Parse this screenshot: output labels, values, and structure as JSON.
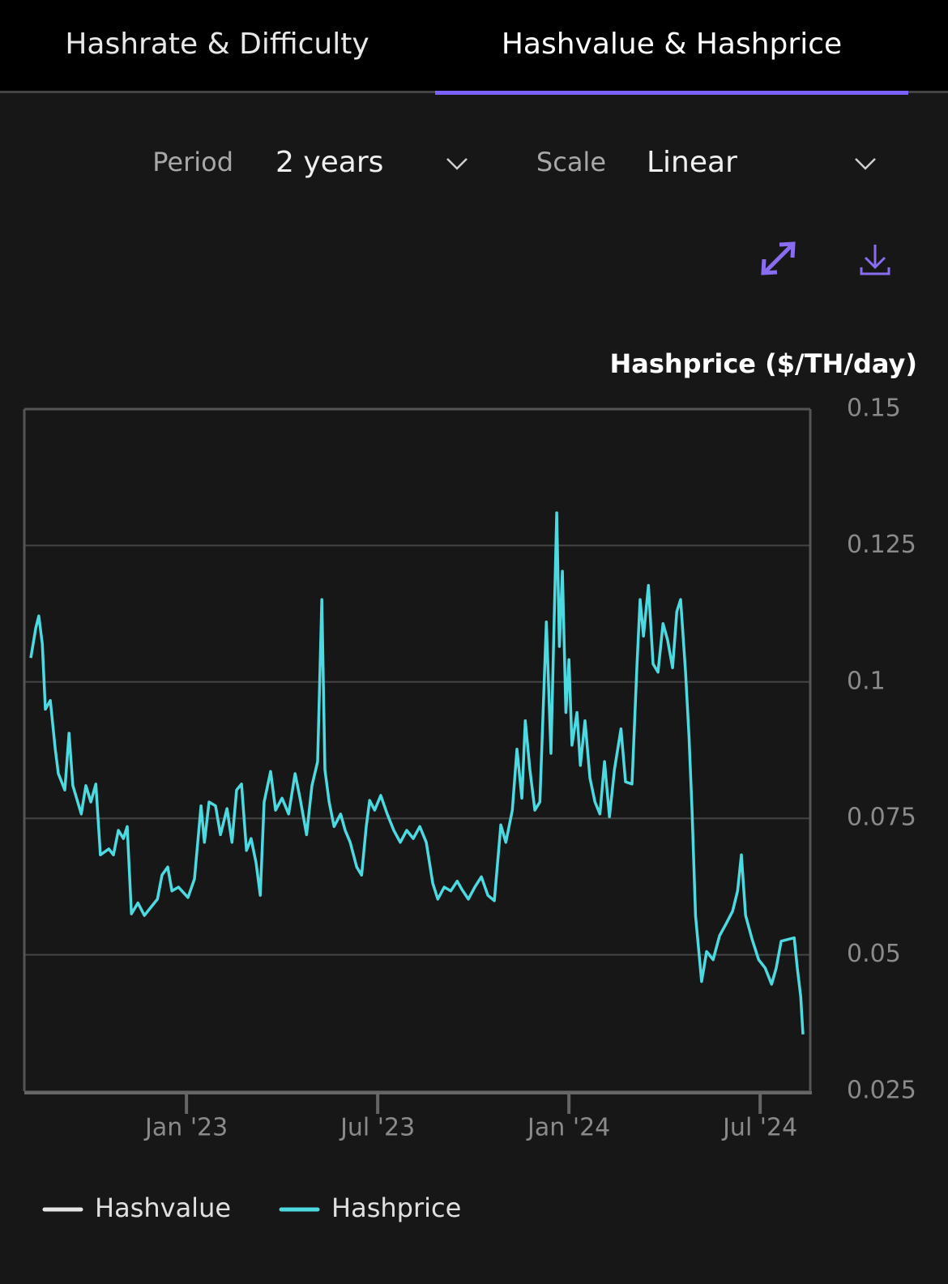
{
  "tabs": [
    "Hashrate & Difficulty",
    "Hashvalue & Hashprice"
  ],
  "active_tab": 1,
  "controls": {
    "period": {
      "label": "Period",
      "value": "2 years"
    },
    "scale": {
      "label": "Scale",
      "value": "Linear"
    }
  },
  "chart_data": {
    "type": "line",
    "y_axis_title": "Hashprice ($/TH/day)",
    "x": [
      2022.593,
      2022.606,
      2022.614,
      2022.623,
      2022.631,
      2022.644,
      2022.657,
      2022.665,
      2022.682,
      2022.693,
      2022.703,
      2022.725,
      2022.737,
      2022.75,
      2022.763,
      2022.775,
      2022.797,
      2022.809,
      2022.822,
      2022.835,
      2022.845,
      2022.856,
      2022.873,
      2022.89,
      2022.907,
      2022.924,
      2022.936,
      2022.951,
      2022.962,
      2022.979,
      2023.004,
      2023.021,
      2023.038,
      2023.047,
      2023.059,
      2023.076,
      2023.089,
      2023.106,
      2023.119,
      2023.131,
      2023.144,
      2023.157,
      2023.169,
      2023.182,
      2023.193,
      2023.203,
      2023.22,
      2023.233,
      2023.25,
      2023.267,
      2023.284,
      2023.297,
      2023.314,
      2023.328,
      2023.343,
      2023.354,
      2023.362,
      2023.373,
      2023.386,
      2023.403,
      2023.415,
      2023.428,
      2023.445,
      2023.458,
      2023.47,
      2023.479,
      2023.492,
      2023.508,
      2023.525,
      2023.542,
      2023.559,
      2023.576,
      2023.593,
      2023.61,
      2023.627,
      2023.644,
      2023.657,
      2023.674,
      2023.691,
      2023.708,
      2023.72,
      2023.737,
      2023.754,
      2023.771,
      2023.788,
      2023.805,
      2023.822,
      2023.835,
      2023.852,
      2023.864,
      2023.877,
      2023.886,
      2023.898,
      2023.911,
      2023.924,
      2023.941,
      2023.953,
      2023.968,
      2023.975,
      2023.983,
      2023.992,
      2024.0,
      2024.008,
      2024.021,
      2024.03,
      2024.042,
      2024.055,
      2024.068,
      2024.081,
      2024.093,
      2024.106,
      2024.119,
      2024.136,
      2024.148,
      2024.165,
      2024.178,
      2024.186,
      2024.195,
      2024.208,
      2024.22,
      2024.233,
      2024.246,
      2024.258,
      2024.271,
      2024.282,
      2024.292,
      2024.305,
      2024.314,
      2024.322,
      2024.331,
      2024.347,
      2024.36,
      2024.377,
      2024.394,
      2024.411,
      2024.428,
      2024.441,
      2024.451,
      2024.462,
      2024.479,
      2024.496,
      2024.513,
      2024.53,
      2024.542,
      2024.555,
      2024.572,
      2024.589,
      2024.597,
      2024.606,
      2024.612
    ],
    "series": [
      {
        "name": "Hashprice",
        "color": "#4dd9e0",
        "values": [
          0.1044,
          0.1099,
          0.1121,
          0.107,
          0.095,
          0.0966,
          0.0877,
          0.0832,
          0.0802,
          0.0906,
          0.081,
          0.0758,
          0.081,
          0.078,
          0.0813,
          0.0683,
          0.0694,
          0.0683,
          0.0728,
          0.0713,
          0.0735,
          0.0575,
          0.0595,
          0.0572,
          0.0587,
          0.0602,
          0.0646,
          0.0661,
          0.0617,
          0.0624,
          0.0605,
          0.0639,
          0.0773,
          0.0706,
          0.078,
          0.0773,
          0.072,
          0.0768,
          0.0706,
          0.0802,
          0.0813,
          0.0691,
          0.0713,
          0.0669,
          0.0609,
          0.078,
          0.0836,
          0.0765,
          0.0787,
          0.0758,
          0.0832,
          0.0787,
          0.072,
          0.081,
          0.0854,
          0.1151,
          0.0839,
          0.078,
          0.0735,
          0.0758,
          0.0728,
          0.0706,
          0.0661,
          0.0646,
          0.0735,
          0.0783,
          0.0765,
          0.0792,
          0.0758,
          0.0728,
          0.0706,
          0.0728,
          0.0713,
          0.0735,
          0.0706,
          0.0631,
          0.0602,
          0.0624,
          0.0617,
          0.0635,
          0.062,
          0.0602,
          0.0624,
          0.0643,
          0.0609,
          0.0599,
          0.0738,
          0.0706,
          0.0765,
          0.0877,
          0.0787,
          0.0929,
          0.0839,
          0.0765,
          0.078,
          0.111,
          0.0869,
          0.131,
          0.1065,
          0.1203,
          0.0944,
          0.1041,
          0.0884,
          0.0944,
          0.0847,
          0.0929,
          0.0824,
          0.078,
          0.0758,
          0.0854,
          0.0753,
          0.0839,
          0.0914,
          0.0817,
          0.0813,
          0.1033,
          0.1151,
          0.1084,
          0.1177,
          0.1033,
          0.1018,
          0.1107,
          0.1077,
          0.1026,
          0.1129,
          0.1151,
          0.1018,
          0.0899,
          0.0765,
          0.0572,
          0.0451,
          0.0506,
          0.0491,
          0.0535,
          0.0557,
          0.058,
          0.0617,
          0.0683,
          0.0572,
          0.0528,
          0.0491,
          0.0476,
          0.0446,
          0.0476,
          0.0525,
          0.0528,
          0.0531,
          0.0476,
          0.0424,
          0.0354
        ]
      }
    ],
    "legend": [
      {
        "name": "Hashvalue",
        "color": "#e6e6e6"
      },
      {
        "name": "Hashprice",
        "color": "#4dd9e0"
      }
    ],
    "xlim": [
      2022.576,
      2024.631
    ],
    "xticks": [
      {
        "value": 2023,
        "label": "Jan '23"
      },
      {
        "value": 2023.5,
        "label": "Jul '23"
      },
      {
        "value": 2024,
        "label": "Jan '24"
      },
      {
        "value": 2024.5,
        "label": "Jul '24"
      }
    ],
    "ylim": [
      0.025,
      0.15
    ],
    "yticks": [
      0.025,
      0.05,
      0.075,
      0.1,
      0.125,
      0.15
    ],
    "grid": true
  }
}
